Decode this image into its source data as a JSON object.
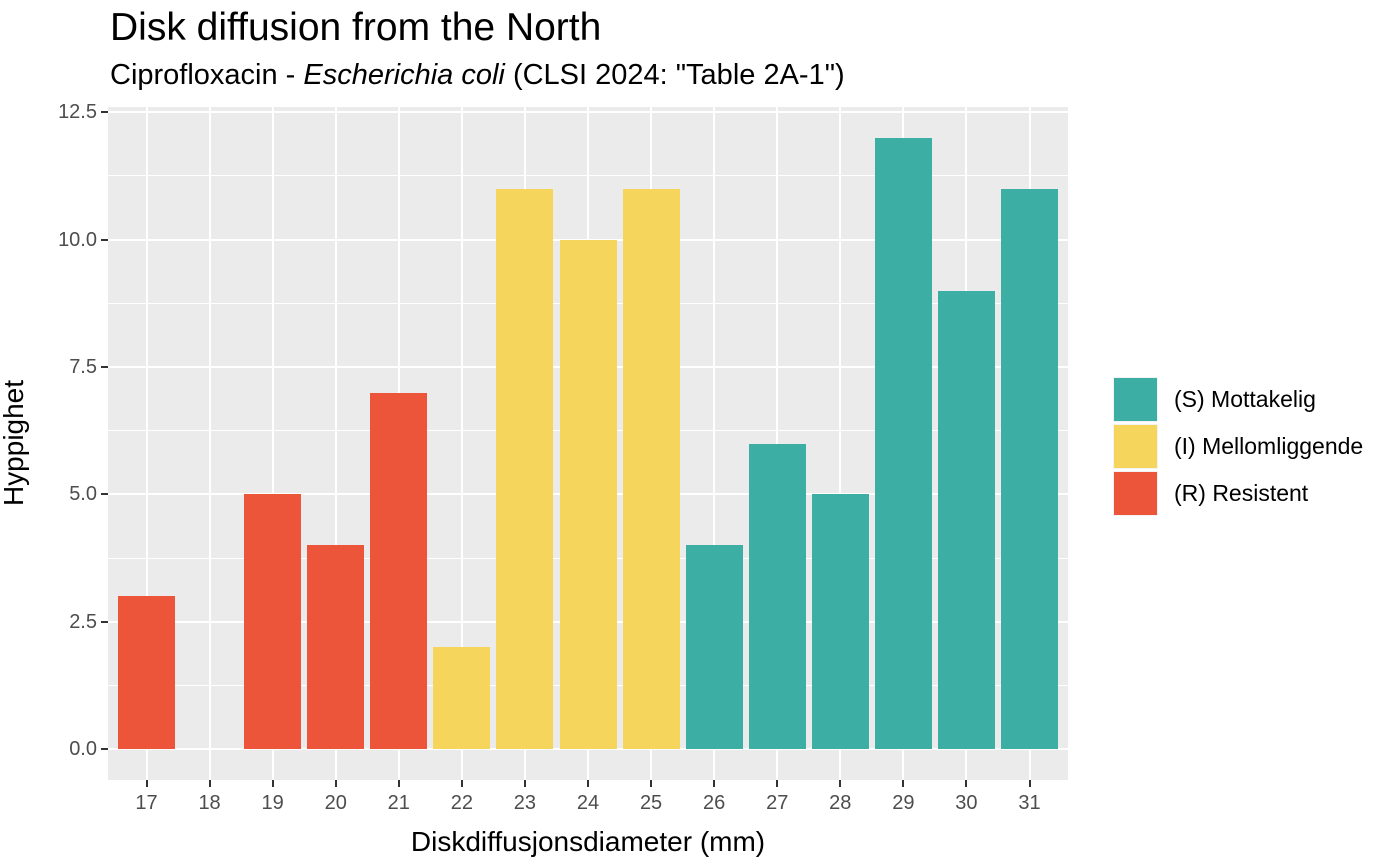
{
  "header": {
    "title": "Disk diffusion from the North",
    "subtitle_prefix": "Ciprofloxacin - ",
    "subtitle_italic": "Escherichia coli",
    "subtitle_suffix": " (CLSI 2024: \"Table 2A-1\")"
  },
  "chart_data": {
    "type": "bar",
    "title": "Disk diffusion from the North",
    "subtitle": "Ciprofloxacin - Escherichia coli (CLSI 2024: \"Table 2A-1\")",
    "xlabel": "Diskdiffusjonsdiameter (mm)",
    "ylabel": "Hyppighet",
    "categories": [
      17,
      18,
      19,
      20,
      21,
      22,
      23,
      24,
      25,
      26,
      27,
      28,
      29,
      30,
      31
    ],
    "values": [
      3,
      0,
      5,
      4,
      7,
      2,
      11,
      10,
      11,
      4,
      6,
      5,
      12,
      9,
      11
    ],
    "bar_groups": [
      "R",
      "R",
      "R",
      "R",
      "R",
      "I",
      "I",
      "I",
      "I",
      "S",
      "S",
      "S",
      "S",
      "S",
      "S"
    ],
    "group_colors": {
      "S": "#3CAEA3",
      "I": "#F6D55C",
      "R": "#ED553B"
    },
    "legend": [
      {
        "key": "S",
        "label": "(S) Mottakelig",
        "color": "#3CAEA3"
      },
      {
        "key": "I",
        "label": "(I) Mellomliggende",
        "color": "#F6D55C"
      },
      {
        "key": "R",
        "label": "(R) Resistent",
        "color": "#ED553B"
      }
    ],
    "legend_position": "right",
    "ylim": [
      0,
      12.5
    ],
    "y_major_ticks": [
      0,
      2.5,
      5,
      7.5,
      10,
      12.5
    ],
    "y_tick_labels": [
      "0.0",
      "2.5",
      "5.0",
      "7.5",
      "10.0",
      "12.5"
    ],
    "y_minor_ticks": [
      1.25,
      3.75,
      6.25,
      8.75,
      11.25
    ],
    "x_tick_labels": [
      "17",
      "18",
      "19",
      "20",
      "21",
      "22",
      "23",
      "24",
      "25",
      "26",
      "27",
      "28",
      "29",
      "30",
      "31"
    ],
    "grid": true,
    "colors": {
      "panel_background": "#EBEBEB",
      "gridline": "#FFFFFF",
      "tick_mark": "#333333",
      "tick_label": "#4D4D4D",
      "text": "#000000",
      "legend_key_background": "#F2F2F2"
    }
  }
}
